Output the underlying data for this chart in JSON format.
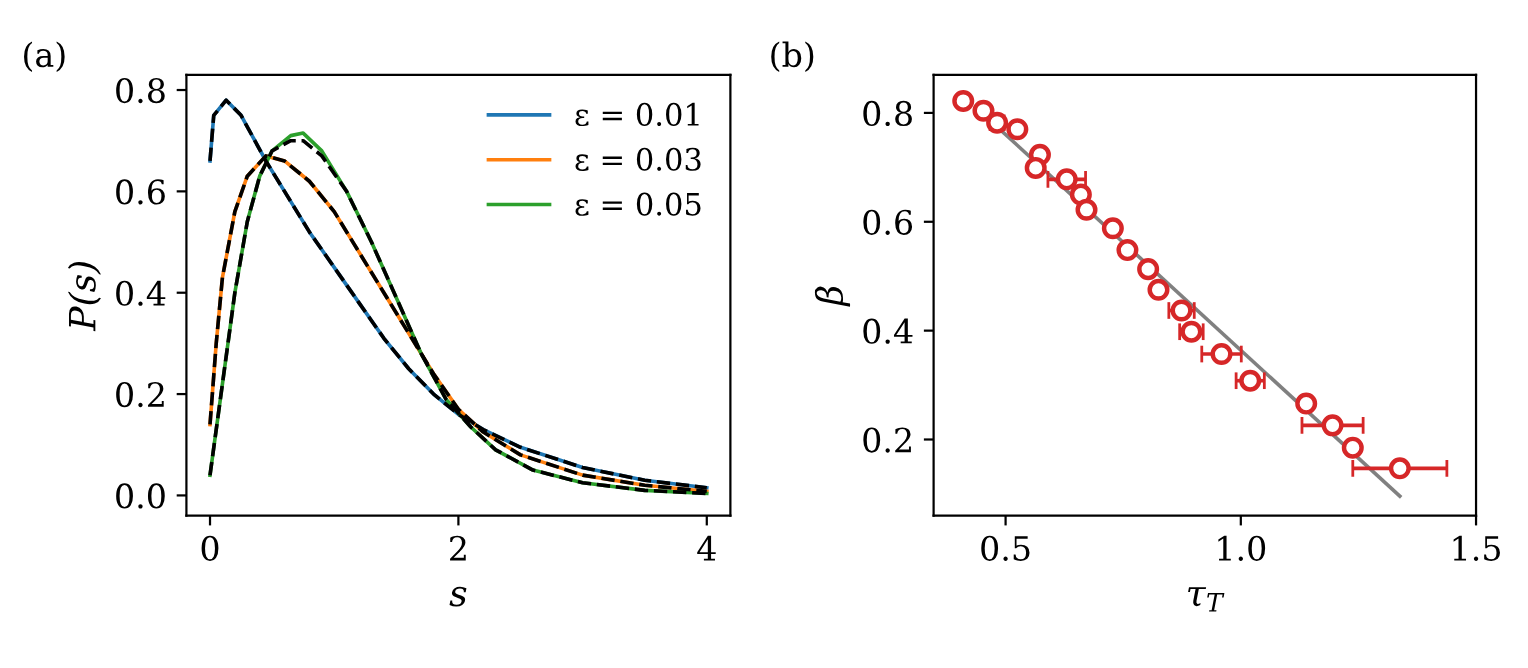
{
  "chart_data": [
    {
      "type": "line",
      "title": "(a)",
      "xlabel": "s",
      "ylabel": "P(s)",
      "xlim": [
        -0.19,
        4.19
      ],
      "ylim": [
        -0.04,
        0.83
      ],
      "xticks": [
        0,
        2,
        4
      ],
      "yticks": [
        {
          "value": 0,
          "label": "0.0"
        },
        0.2,
        0.4,
        0.6,
        0.8
      ],
      "grid": false,
      "legend": "top right",
      "line_style": "solid",
      "x": [
        0,
        0.03,
        0.13,
        0.25,
        0.45,
        0.6,
        0.8,
        1.0,
        1.2,
        1.4,
        1.6,
        1.8,
        2.0,
        2.2,
        2.5,
        3.0,
        3.5,
        4.0
      ],
      "series": [
        {
          "name": "ε = 0.01",
          "color": "#1f77b4",
          "values": [
            0.66,
            0.75,
            0.78,
            0.75,
            0.66,
            0.6,
            0.52,
            0.45,
            0.38,
            0.31,
            0.25,
            0.2,
            0.16,
            0.13,
            0.095,
            0.055,
            0.03,
            0.015
          ]
        },
        {
          "name": "ε = 0.03",
          "color": "#ff7f0e",
          "x": [
            0,
            0.05,
            0.1,
            0.2,
            0.3,
            0.45,
            0.6,
            0.8,
            1.0,
            1.2,
            1.4,
            1.6,
            1.8,
            2.0,
            2.2,
            2.5,
            3.0,
            3.5,
            4.0
          ],
          "values": [
            0.14,
            0.3,
            0.43,
            0.56,
            0.63,
            0.67,
            0.66,
            0.62,
            0.56,
            0.48,
            0.4,
            0.32,
            0.24,
            0.17,
            0.125,
            0.08,
            0.04,
            0.02,
            0.008
          ]
        },
        {
          "name": "ε = 0.05",
          "color": "#2ca02c",
          "x": [
            0,
            0.1,
            0.2,
            0.3,
            0.4,
            0.5,
            0.65,
            0.75,
            0.9,
            1.1,
            1.3,
            1.5,
            1.7,
            1.9,
            2.1,
            2.3,
            2.6,
            3.0,
            3.5,
            4.0
          ],
          "values": [
            0.04,
            0.22,
            0.4,
            0.54,
            0.63,
            0.68,
            0.71,
            0.715,
            0.68,
            0.6,
            0.5,
            0.39,
            0.28,
            0.19,
            0.135,
            0.09,
            0.05,
            0.025,
            0.01,
            0.004
          ]
        },
        {
          "color": "#000000",
          "line_style": "dashed",
          "values": [
            0.66,
            0.75,
            0.78,
            0.75,
            0.66,
            0.6,
            0.52,
            0.45,
            0.38,
            0.31,
            0.25,
            0.2,
            0.16,
            0.13,
            0.095,
            0.055,
            0.03,
            0.015
          ]
        },
        {
          "color": "#000000",
          "line_style": "dashed",
          "x": [
            0,
            0.05,
            0.1,
            0.2,
            0.3,
            0.45,
            0.6,
            0.8,
            1.0,
            1.2,
            1.4,
            1.6,
            1.8,
            2.0,
            2.2,
            2.5,
            3.0,
            3.5,
            4.0
          ],
          "values": [
            0.14,
            0.3,
            0.43,
            0.56,
            0.63,
            0.67,
            0.66,
            0.62,
            0.56,
            0.48,
            0.4,
            0.32,
            0.24,
            0.17,
            0.125,
            0.08,
            0.04,
            0.02,
            0.008
          ]
        },
        {
          "color": "#000000",
          "line_style": "dashed",
          "x": [
            0,
            0.1,
            0.2,
            0.3,
            0.4,
            0.5,
            0.65,
            0.75,
            0.9,
            1.1,
            1.3,
            1.5,
            1.7,
            1.9,
            2.1,
            2.3,
            2.6,
            3.0,
            3.5,
            4.0
          ],
          "values": [
            0.04,
            0.22,
            0.4,
            0.54,
            0.63,
            0.68,
            0.7,
            0.7,
            0.67,
            0.6,
            0.5,
            0.39,
            0.28,
            0.19,
            0.135,
            0.09,
            0.05,
            0.025,
            0.01,
            0.004
          ]
        }
      ]
    },
    {
      "type": "scatter",
      "title": "(b)",
      "xlabel": "τ$_{T}$",
      "ylabel": "β",
      "xlim": [
        0.347,
        1.5
      ],
      "ylim": [
        0.06,
        0.87
      ],
      "xticks": [
        0.5,
        {
          "value": 1,
          "label": "1.0"
        },
        1.5
      ],
      "yticks": [
        0.2,
        0.4,
        0.6,
        0.8
      ],
      "grid": false,
      "legend": false,
      "series": [
        {
          "type": "line",
          "color": "#808080",
          "x": [
            0.489,
            1.338
          ],
          "values": [
            0.769,
            0.096
          ]
        },
        {
          "type": "scatter",
          "color": "#d62728",
          "marker": "circle",
          "x": [
            0.41,
            0.453,
            0.482,
            0.525,
            0.573,
            0.564,
            0.63,
            0.66,
            0.672,
            0.728,
            0.759,
            0.803,
            0.825,
            0.874,
            0.895,
            0.959,
            1.02,
            1.139,
            1.195,
            1.238,
            1.338
          ],
          "values": [
            0.822,
            0.804,
            0.782,
            0.77,
            0.723,
            0.699,
            0.678,
            0.65,
            0.622,
            0.588,
            0.548,
            0.513,
            0.475,
            0.437,
            0.398,
            0.357,
            0.308,
            0.266,
            0.226,
            0.185,
            0.147
          ],
          "xerrors": [
            null,
            null,
            0.015,
            null,
            null,
            0.01,
            0.04,
            0.01,
            null,
            null,
            0.01,
            null,
            null,
            0.027,
            0.025,
            0.042,
            0.03,
            null,
            0.065,
            0.01,
            0.1
          ]
        }
      ]
    }
  ]
}
